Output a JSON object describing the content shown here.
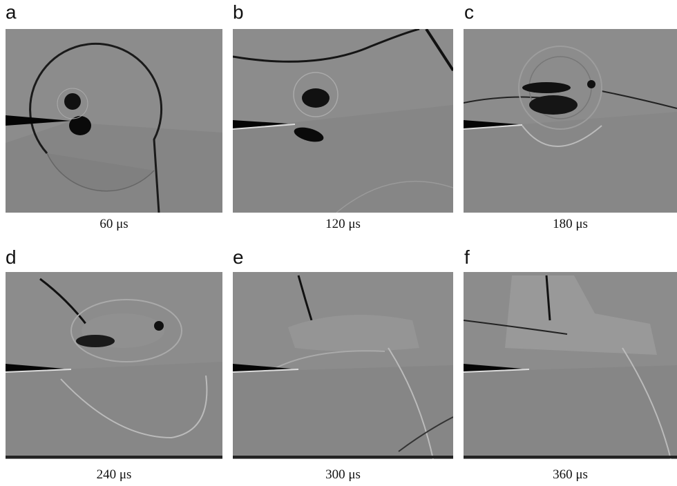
{
  "figure": {
    "panels": [
      {
        "letter": "a",
        "caption": "60 μs"
      },
      {
        "letter": "b",
        "caption": "120 μs"
      },
      {
        "letter": "c",
        "caption": "180 μs"
      },
      {
        "letter": "d",
        "caption": "240 μs"
      },
      {
        "letter": "e",
        "caption": "300 μs"
      },
      {
        "letter": "f",
        "caption": "360 μs"
      }
    ]
  }
}
